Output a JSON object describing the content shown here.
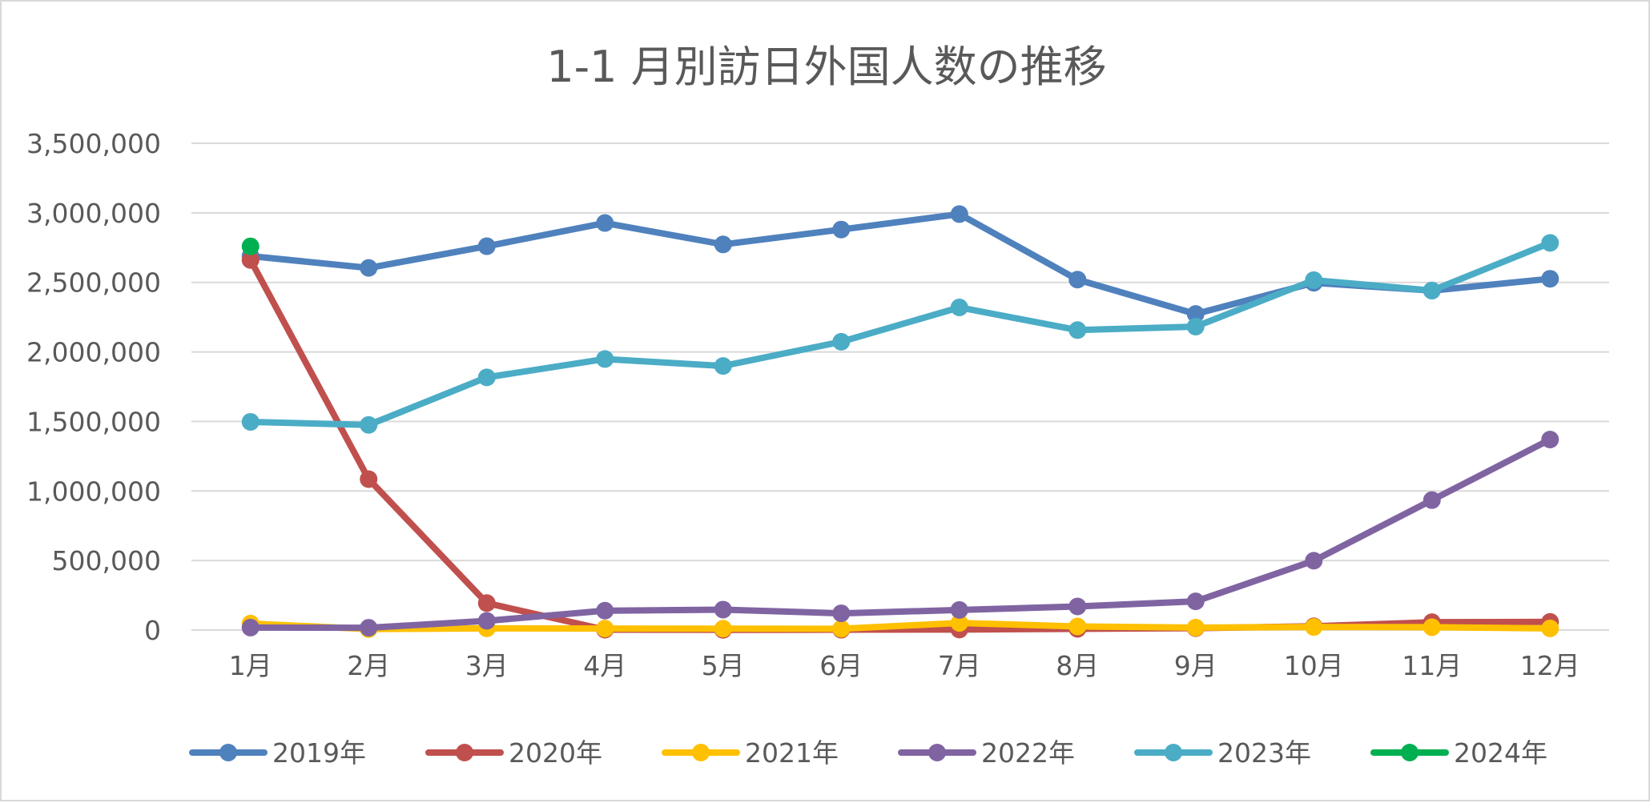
{
  "chart_data": {
    "type": "line",
    "title": "1-1 月別訪日外国人数の推移",
    "xlabel": "",
    "ylabel": "",
    "categories": [
      "1月",
      "2月",
      "3月",
      "4月",
      "5月",
      "6月",
      "7月",
      "8月",
      "9月",
      "10月",
      "11月",
      "12月"
    ],
    "ylim": [
      0,
      3500000
    ],
    "y_ticks": [
      0,
      500000,
      1000000,
      1500000,
      2000000,
      2500000,
      3000000,
      3500000
    ],
    "y_tick_labels": [
      "0",
      "500,000",
      "1,000,000",
      "1,500,000",
      "2,000,000",
      "2,500,000",
      "3,000,000",
      "3,500,000"
    ],
    "grid": "horizontal",
    "legend_position": "bottom",
    "series": [
      {
        "name": "2019年",
        "color": "#4f81bd",
        "values": [
          2689000,
          2604000,
          2760000,
          2927000,
          2773000,
          2880000,
          2991000,
          2520000,
          2273000,
          2497000,
          2441000,
          2526000
        ]
      },
      {
        "name": "2020年",
        "color": "#c0504d",
        "values": [
          2661000,
          1085000,
          194000,
          2900,
          1700,
          2600,
          3800,
          8700,
          13700,
          27400,
          56700,
          58700
        ]
      },
      {
        "name": "2021年",
        "color": "#ffc000",
        "values": [
          46500,
          7400,
          12300,
          10900,
          10000,
          9300,
          51100,
          25900,
          17700,
          22100,
          20700,
          12100
        ]
      },
      {
        "name": "2022年",
        "color": "#8064a2",
        "values": [
          17800,
          16700,
          66100,
          139500,
          147000,
          120400,
          144500,
          169900,
          206600,
          498600,
          934500,
          1370100
        ]
      },
      {
        "name": "2023年",
        "color": "#4bacc6",
        "values": [
          1497000,
          1475000,
          1817000,
          1949000,
          1899000,
          2073000,
          2320000,
          2157000,
          2182000,
          2516000,
          2441000,
          2784000
        ]
      },
      {
        "name": "2024年",
        "color": "#00b050",
        "values": [
          2759000,
          null,
          null,
          null,
          null,
          null,
          null,
          null,
          null,
          null,
          null,
          null
        ]
      }
    ]
  }
}
